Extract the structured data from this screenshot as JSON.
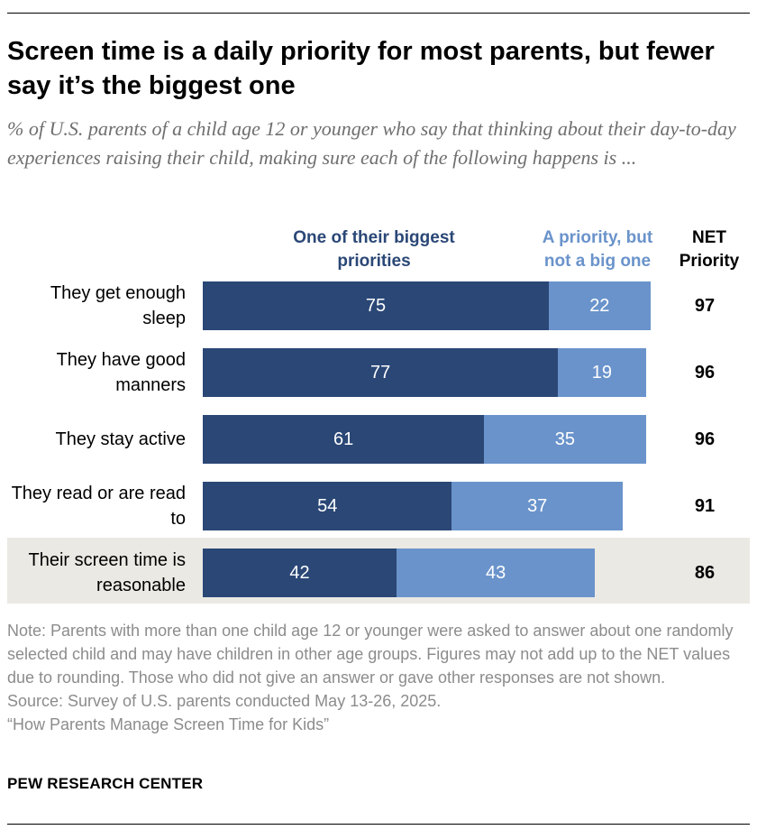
{
  "title": "Screen time is a daily priority for most parents, but fewer say it’s the biggest one",
  "subtitle": "% of U.S. parents of a child age 12 or younger who say that thinking about their day-to-day experiences raising their child, making sure each of the following happens is ...",
  "chart_data": {
    "type": "bar",
    "orientation": "horizontal",
    "stacked": true,
    "categories": [
      "They get enough sleep",
      "They have good manners",
      "They stay active",
      "They read or are read to",
      "Their screen time is reasonable"
    ],
    "series": [
      {
        "name": "One of their biggest priorities",
        "values": [
          75,
          77,
          61,
          54,
          42
        ],
        "color": "#2a4776"
      },
      {
        "name": "A priority, but not a big one",
        "values": [
          22,
          19,
          35,
          37,
          43
        ],
        "color": "#6a93cb"
      }
    ],
    "net_header": "NET Priority",
    "net_values": [
      97,
      96,
      96,
      91,
      86
    ],
    "highlighted_category": "Their screen time is reasonable",
    "highlight_color": "#ebe9e3",
    "xlim": [
      0,
      100
    ],
    "grid": false
  },
  "footer": {
    "note": "Note: Parents with more than one child age 12 or younger were asked to answer about one randomly selected child and may have children in other age groups. Figures may not add up to the NET values due to rounding. Those who did not give an answer or gave other responses are not shown.",
    "source": "Source: Survey of U.S. parents conducted May 13-26, 2025.",
    "report": "“How Parents Manage Screen Time for Kids”",
    "brand": "PEW RESEARCH CENTER"
  }
}
